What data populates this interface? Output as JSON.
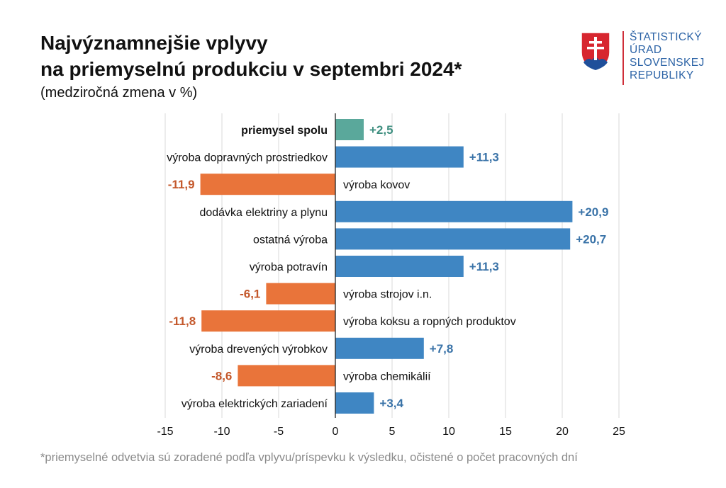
{
  "header": {
    "title_line1": "Najvýznamnejšie vplyvy",
    "title_line2": "na priemyselnú produkciu v septembri 2024*",
    "subtitle": "(medziročná zmena v %)"
  },
  "logo": {
    "lines": [
      "ŠTATISTICKÝ",
      "ÚRAD",
      "SLOVENSKEJ",
      "REPUBLIKY"
    ],
    "icon": "slovak-coat-of-arms-icon"
  },
  "colors": {
    "total": "#5aa89b",
    "positive": "#3f86c3",
    "negative": "#e9743a",
    "positive_label": "#3a73a8",
    "negative_label": "#c4582b",
    "total_label": "#3f8f80"
  },
  "chart_data": {
    "type": "bar",
    "orientation": "horizontal",
    "categories": [
      "priemysel spolu",
      "výroba dopravných prostriedkov",
      "výroba kovov",
      "dodávka elektriny a plynu",
      "ostatná výroba",
      "výroba potravín",
      "výroba strojov i.n.",
      "výroba koksu a ropných produktov",
      "výroba drevených výrobkov",
      "výroba chemikálií",
      "výroba elektrických zariadení"
    ],
    "values": [
      2.5,
      11.3,
      -11.9,
      20.9,
      20.7,
      11.3,
      -6.1,
      -11.8,
      7.8,
      -8.6,
      3.4
    ],
    "value_labels": [
      "+2,5",
      "+11,3",
      "-11,9",
      "+20,9",
      "+20,7",
      "+11,3",
      "-6,1",
      "-11,8",
      "+7,8",
      "-8,6",
      "+3,4"
    ],
    "highlight_first": true,
    "xlim": [
      -15,
      25
    ],
    "x_ticks": [
      -15,
      -10,
      -5,
      0,
      5,
      10,
      15,
      20,
      25
    ],
    "x_tick_labels": [
      "-15",
      "-10",
      "-5",
      "0",
      "5",
      "10",
      "15",
      "20",
      "25"
    ],
    "grid": "vertical",
    "legend": "none"
  },
  "footnote": "*priemyselné odvetvia sú zoradené podľa vplyvu/príspevku k výsledku, očistené o počet pracovných dní"
}
